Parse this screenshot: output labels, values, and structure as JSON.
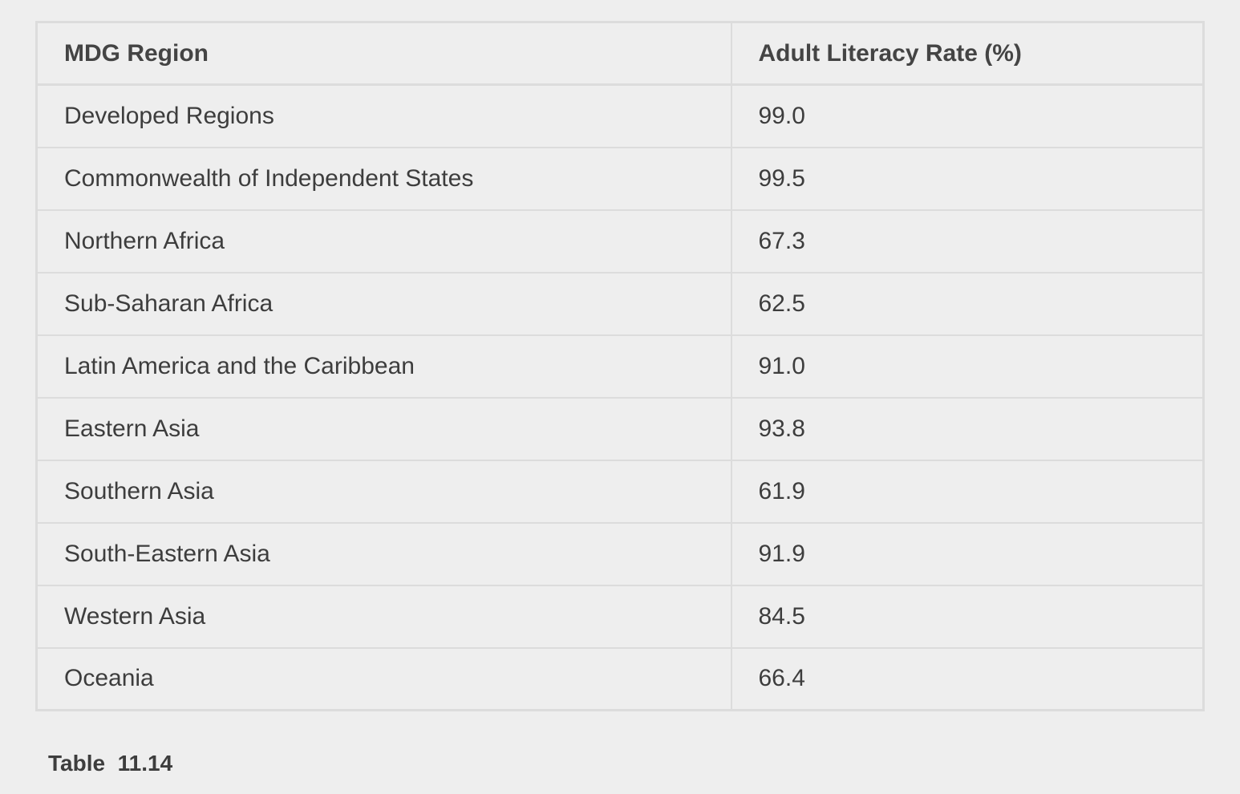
{
  "table": {
    "headers": [
      "MDG Region",
      "Adult Literacy Rate (%)"
    ],
    "rows": [
      [
        "Developed Regions",
        "99.0"
      ],
      [
        "Commonwealth of Independent States",
        "99.5"
      ],
      [
        "Northern Africa",
        "67.3"
      ],
      [
        "Sub-Saharan Africa",
        "62.5"
      ],
      [
        "Latin America and the Caribbean",
        "91.0"
      ],
      [
        "Eastern Asia",
        "93.8"
      ],
      [
        "Southern Asia",
        "61.9"
      ],
      [
        "South-Eastern Asia",
        "91.9"
      ],
      [
        "Western Asia",
        "84.5"
      ],
      [
        "Oceania",
        "66.4"
      ]
    ]
  },
  "caption": "Table  11.14"
}
